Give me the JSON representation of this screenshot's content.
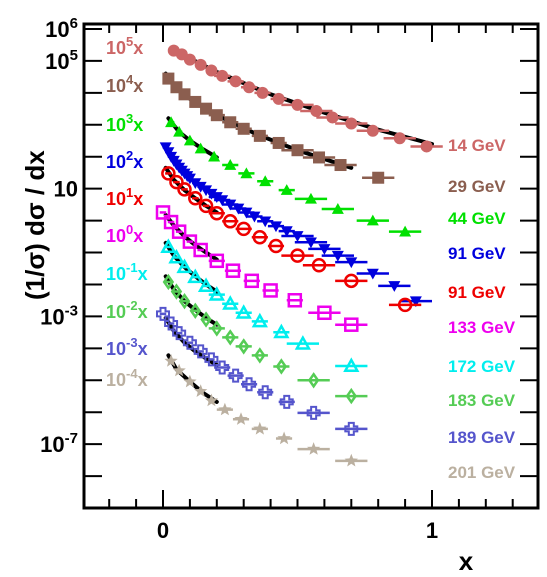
{
  "chart_data": {
    "type": "scatter",
    "title": "",
    "xlabel": "x",
    "ylabel": "(1/σ) dσ / dx",
    "xlim": [
      -0.3,
      1.4
    ],
    "ylim": [
      1e-09,
      1000000.0
    ],
    "y_scale": "log",
    "x_ticks": [
      {
        "value": 0,
        "label": "0"
      },
      {
        "value": 1,
        "label": "1"
      }
    ],
    "y_ticks": [
      {
        "value": 1000000.0,
        "base": "10",
        "exp": "6"
      },
      {
        "value": 100000.0,
        "base": "10",
        "exp": "5"
      },
      {
        "value": 10,
        "base": "10",
        "exp": ""
      },
      {
        "value": 0.001,
        "base": "10",
        "exp": "-3"
      },
      {
        "value": 1e-07,
        "base": "10",
        "exp": "-7"
      }
    ],
    "series": [
      {
        "name": "14 GeV",
        "scale_base": "10",
        "scale_exp": "5",
        "color": "#cc6666",
        "marker": "circle-filled",
        "scale": 100000.0,
        "x": [
          0.04,
          0.07,
          0.1,
          0.14,
          0.18,
          0.22,
          0.27,
          0.32,
          0.37,
          0.43,
          0.5,
          0.57,
          0.63,
          0.7,
          0.78,
          0.88,
          0.98
        ],
        "y": [
          210000,
          160000,
          110000,
          75000,
          50000,
          34000,
          23000,
          15000,
          10000,
          6500,
          4200,
          2700,
          1700,
          1100,
          650,
          380,
          210
        ],
        "fit": [
          [
            0.03,
            230000
          ],
          [
            0.1,
            120000
          ],
          [
            0.2,
            45000
          ],
          [
            0.4,
            9000
          ],
          [
            0.6,
            2400
          ],
          [
            0.8,
            700
          ],
          [
            1.0,
            250
          ]
        ]
      },
      {
        "name": "29 GeV",
        "scale_base": "10",
        "scale_exp": "4",
        "color": "#8b5e4f",
        "marker": "square-filled",
        "scale": 10000.0,
        "x": [
          0.02,
          0.05,
          0.08,
          0.12,
          0.16,
          0.2,
          0.25,
          0.3,
          0.36,
          0.43,
          0.5,
          0.58,
          0.66,
          0.8
        ],
        "y": [
          28000,
          15000,
          9000,
          5200,
          3200,
          2000,
          1200,
          750,
          450,
          270,
          160,
          95,
          55,
          22
        ],
        "fit": [
          [
            0.01,
            40000
          ],
          [
            0.05,
            14000
          ],
          [
            0.1,
            6500
          ],
          [
            0.2,
            2000
          ],
          [
            0.35,
            500
          ],
          [
            0.5,
            160
          ],
          [
            0.7,
            45
          ]
        ]
      },
      {
        "name": "44 GeV",
        "scale_base": "10",
        "scale_exp": "3",
        "color": "#00e000",
        "marker": "triangle-up-filled",
        "scale": 1000.0,
        "x": [
          0.03,
          0.06,
          0.1,
          0.14,
          0.19,
          0.25,
          0.31,
          0.38,
          0.46,
          0.55,
          0.65,
          0.78,
          0.9
        ],
        "y": [
          1200,
          600,
          320,
          180,
          100,
          55,
          30,
          17,
          9,
          4.8,
          2.3,
          1.0,
          0.45
        ],
        "fit": [
          [
            0.02,
            1600
          ],
          [
            0.06,
            600
          ],
          [
            0.1,
            320
          ],
          [
            0.15,
            170
          ],
          [
            0.2,
            95
          ]
        ]
      },
      {
        "name": "91 GeV",
        "scale_base": "10",
        "scale_exp": "2",
        "color": "#0000dd",
        "marker": "triangle-down-filled",
        "scale": 100.0,
        "x": [
          0.01,
          0.02,
          0.03,
          0.04,
          0.05,
          0.06,
          0.07,
          0.08,
          0.09,
          0.1,
          0.12,
          0.14,
          0.16,
          0.18,
          0.2,
          0.22,
          0.25,
          0.28,
          0.31,
          0.34,
          0.38,
          0.42,
          0.46,
          0.5,
          0.55,
          0.6,
          0.65,
          0.7,
          0.78,
          0.86,
          0.94
        ],
        "y": [
          200,
          140,
          100,
          75,
          58,
          46,
          37,
          30,
          25,
          21,
          15,
          11.5,
          9,
          7,
          5.5,
          4.4,
          3.2,
          2.4,
          1.8,
          1.35,
          0.95,
          0.67,
          0.47,
          0.33,
          0.21,
          0.13,
          0.08,
          0.05,
          0.022,
          0.009,
          0.003
        ]
      },
      {
        "name": "91 GeV",
        "scale_base": "10",
        "scale_exp": "1",
        "color": "#ee0000",
        "marker": "circle-open",
        "scale": 10,
        "x": [
          0.02,
          0.05,
          0.08,
          0.12,
          0.16,
          0.2,
          0.25,
          0.3,
          0.36,
          0.42,
          0.5,
          0.58,
          0.7,
          0.9
        ],
        "y": [
          30,
          16,
          9.5,
          5,
          2.9,
          1.7,
          0.95,
          0.55,
          0.3,
          0.16,
          0.08,
          0.04,
          0.013,
          0.0023
        ],
        "fit": [
          [
            0.01,
            45
          ],
          [
            0.04,
            19
          ],
          [
            0.08,
            9
          ],
          [
            0.12,
            5
          ],
          [
            0.16,
            2.9
          ],
          [
            0.2,
            1.8
          ]
        ]
      },
      {
        "name": "133 GeV",
        "scale_base": "10",
        "scale_exp": "0",
        "color": "#ee00ee",
        "marker": "square-open",
        "scale": 1,
        "x": [
          0.0,
          0.03,
          0.06,
          0.1,
          0.14,
          0.2,
          0.26,
          0.33,
          0.4,
          0.49,
          0.6,
          0.7
        ],
        "y": [
          1.8,
          0.9,
          0.45,
          0.22,
          0.12,
          0.055,
          0.027,
          0.013,
          0.0065,
          0.0032,
          0.0013,
          0.00055
        ],
        "fit": [
          [
            0.01,
            1.5
          ],
          [
            0.04,
            0.7
          ],
          [
            0.08,
            0.32
          ],
          [
            0.12,
            0.17
          ],
          [
            0.16,
            0.1
          ],
          [
            0.2,
            0.06
          ]
        ]
      },
      {
        "name": "172 GeV",
        "scale_base": "10",
        "scale_exp": "-1",
        "color": "#00eeee",
        "marker": "triangle-up-open",
        "scale": 0.1,
        "x": [
          0.02,
          0.05,
          0.08,
          0.12,
          0.16,
          0.2,
          0.25,
          0.3,
          0.36,
          0.44,
          0.52,
          0.7
        ],
        "y": [
          0.15,
          0.07,
          0.035,
          0.017,
          0.009,
          0.0048,
          0.0025,
          0.0013,
          0.0007,
          0.00032,
          0.00014,
          2.8e-05
        ],
        "fit": [
          [
            0.01,
            0.2
          ],
          [
            0.04,
            0.08
          ],
          [
            0.08,
            0.035
          ],
          [
            0.12,
            0.018
          ],
          [
            0.16,
            0.01
          ],
          [
            0.2,
            0.006
          ]
        ]
      },
      {
        "name": "183 GeV",
        "scale_base": "10",
        "scale_exp": "-2",
        "color": "#55cc55",
        "marker": "diamond-open",
        "scale": 0.01,
        "x": [
          0.02,
          0.05,
          0.08,
          0.12,
          0.16,
          0.2,
          0.25,
          0.3,
          0.36,
          0.44,
          0.56,
          0.7
        ],
        "y": [
          0.012,
          0.006,
          0.003,
          0.0015,
          0.0008,
          0.00042,
          0.00022,
          0.000115,
          6e-05,
          2.7e-05,
          1e-05,
          3.2e-06
        ],
        "fit": [
          [
            0.01,
            0.018
          ],
          [
            0.04,
            0.007
          ],
          [
            0.08,
            0.003
          ],
          [
            0.12,
            0.0016
          ],
          [
            0.16,
            0.0009
          ],
          [
            0.2,
            0.00055
          ]
        ]
      },
      {
        "name": "189 GeV",
        "scale_base": "10",
        "scale_exp": "-3",
        "color": "#5555cc",
        "marker": "cross-open",
        "scale": 0.001,
        "x": [
          0.0,
          0.03,
          0.06,
          0.1,
          0.14,
          0.18,
          0.22,
          0.27,
          0.32,
          0.38,
          0.46,
          0.56,
          0.7
        ],
        "y": [
          0.0012,
          0.0006,
          0.0003,
          0.00015,
          8e-05,
          4.5e-05,
          2.5e-05,
          1.4e-05,
          7.5e-06,
          4.2e-06,
          2.1e-06,
          9.5e-07,
          3e-07
        ],
        "fit": [
          [
            0.01,
            0.0009
          ],
          [
            0.04,
            0.00035
          ],
          [
            0.08,
            0.00015
          ],
          [
            0.12,
            8e-05
          ],
          [
            0.16,
            4.8e-05
          ],
          [
            0.2,
            3e-05
          ]
        ]
      },
      {
        "name": "201 GeV",
        "scale_base": "10",
        "scale_exp": "-4",
        "color": "#bbb0a0",
        "marker": "star-filled",
        "scale": 0.0001,
        "x": [
          0.03,
          0.06,
          0.1,
          0.14,
          0.18,
          0.23,
          0.29,
          0.36,
          0.45,
          0.56,
          0.7
        ],
        "y": [
          4e-05,
          2e-05,
          9e-06,
          4.5e-06,
          2.3e-06,
          1.2e-06,
          6e-07,
          3e-07,
          1.5e-07,
          7e-08,
          3e-08
        ],
        "fit": [
          [
            0.02,
            6e-05
          ],
          [
            0.05,
            2.2e-05
          ],
          [
            0.1,
            9e-06
          ],
          [
            0.15,
            4e-06
          ],
          [
            0.2,
            2.1e-06
          ]
        ]
      }
    ]
  }
}
